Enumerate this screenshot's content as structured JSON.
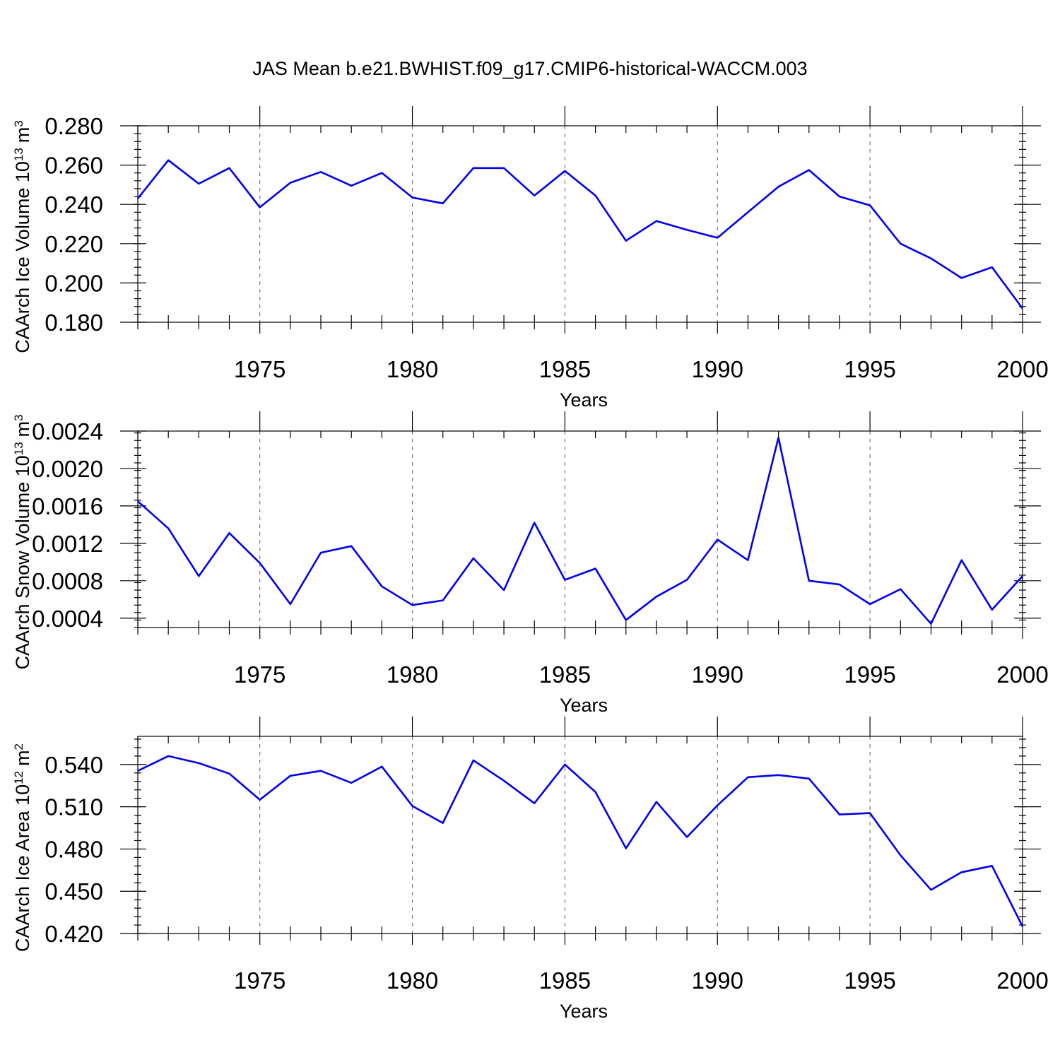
{
  "figure_title": "JAS Mean b.e21.BWHIST.f09_g17.CMIP6-historical-WACCM.003",
  "series_color": "#0000ee",
  "chart_data": [
    {
      "type": "line",
      "xlabel": "Years",
      "ylabel": "CAArch Ice Volume 10",
      "ylabel_exp": "13",
      "ylabel_unit": "m",
      "ylabel_unit_exp": "3",
      "xlim": [
        1971,
        2000
      ],
      "ylim": [
        0.18,
        0.28
      ],
      "x_ticks": [
        1975,
        1980,
        1985,
        1990,
        1995,
        2000
      ],
      "x_tick_labels": [
        "1975",
        "1980",
        "1985",
        "1990",
        "1995",
        "2000"
      ],
      "y_ticks": [
        0.18,
        0.2,
        0.22,
        0.24,
        0.26,
        0.28
      ],
      "y_tick_labels": [
        "0.180",
        "0.200",
        "0.220",
        "0.240",
        "0.260",
        "0.280"
      ],
      "y_minor_step": 0.004,
      "grid": "vertical dashed at major x ticks",
      "x": [
        1971,
        1972,
        1973,
        1974,
        1975,
        1976,
        1977,
        1978,
        1979,
        1980,
        1981,
        1982,
        1983,
        1984,
        1985,
        1986,
        1987,
        1988,
        1989,
        1990,
        1991,
        1992,
        1993,
        1994,
        1995,
        1996,
        1997,
        1998,
        1999,
        2000
      ],
      "values": [
        0.243,
        0.2625,
        0.2505,
        0.2585,
        0.2385,
        0.251,
        0.2565,
        0.2495,
        0.256,
        0.2435,
        0.2405,
        0.2585,
        0.2585,
        0.2445,
        0.257,
        0.2445,
        0.2215,
        0.2315,
        0.227,
        0.223,
        0.236,
        0.249,
        0.2575,
        0.244,
        0.2395,
        0.22,
        0.2125,
        0.2025,
        0.208,
        0.187
      ]
    },
    {
      "type": "line",
      "xlabel": "Years",
      "ylabel": "CAArch Snow Volume 10",
      "ylabel_exp": "13",
      "ylabel_unit": "m",
      "ylabel_unit_exp": "3",
      "xlim": [
        1971,
        2000
      ],
      "ylim": [
        0.0003,
        0.0024
      ],
      "x_ticks": [
        1975,
        1980,
        1985,
        1990,
        1995,
        2000
      ],
      "x_tick_labels": [
        "1975",
        "1980",
        "1985",
        "1990",
        "1995",
        "2000"
      ],
      "y_ticks": [
        0.0004,
        0.0008,
        0.0012,
        0.0016,
        0.002,
        0.0024
      ],
      "y_tick_labels": [
        "0.0004",
        "0.0008",
        "0.0012",
        "0.0016",
        "0.0020",
        "0.0024"
      ],
      "y_minor_step": 8e-05,
      "grid": "vertical dashed at major x ticks",
      "x": [
        1971,
        1972,
        1973,
        1974,
        1975,
        1976,
        1977,
        1978,
        1979,
        1980,
        1981,
        1982,
        1983,
        1984,
        1985,
        1986,
        1987,
        1988,
        1989,
        1990,
        1991,
        1992,
        1993,
        1994,
        1995,
        1996,
        1997,
        1998,
        1999,
        2000
      ],
      "values": [
        0.00165,
        0.00136,
        0.00085,
        0.00131,
        0.00099,
        0.00055,
        0.0011,
        0.00117,
        0.00074,
        0.00054,
        0.00059,
        0.00104,
        0.0007,
        0.00142,
        0.00081,
        0.00093,
        0.00038,
        0.00063,
        0.00081,
        0.00124,
        0.00102,
        0.00233,
        0.0008,
        0.00076,
        0.00055,
        0.00071,
        0.00034,
        0.00102,
        0.00049,
        0.00085
      ]
    },
    {
      "type": "line",
      "xlabel": "Years",
      "ylabel": "CAArch Ice Area 10",
      "ylabel_exp": "12",
      "ylabel_unit": "m",
      "ylabel_unit_exp": "2",
      "xlim": [
        1971,
        2000
      ],
      "ylim": [
        0.42,
        0.56
      ],
      "x_ticks": [
        1975,
        1980,
        1985,
        1990,
        1995,
        2000
      ],
      "x_tick_labels": [
        "1975",
        "1980",
        "1985",
        "1990",
        "1995",
        "2000"
      ],
      "y_ticks": [
        0.42,
        0.45,
        0.48,
        0.51,
        0.54
      ],
      "y_tick_labels": [
        "0.420",
        "0.450",
        "0.480",
        "0.510",
        "0.540"
      ],
      "y_minor_step": 0.006,
      "grid": "vertical dashed at major x ticks",
      "x": [
        1971,
        1972,
        1973,
        1974,
        1975,
        1976,
        1977,
        1978,
        1979,
        1980,
        1981,
        1982,
        1983,
        1984,
        1985,
        1986,
        1987,
        1988,
        1989,
        1990,
        1991,
        1992,
        1993,
        1994,
        1995,
        1996,
        1997,
        1998,
        1999,
        2000
      ],
      "values": [
        0.5355,
        0.546,
        0.541,
        0.5335,
        0.515,
        0.532,
        0.5355,
        0.527,
        0.5385,
        0.5105,
        0.4985,
        0.543,
        0.5285,
        0.5125,
        0.54,
        0.5205,
        0.4805,
        0.5135,
        0.4885,
        0.511,
        0.531,
        0.5325,
        0.53,
        0.5045,
        0.5055,
        0.4755,
        0.451,
        0.4635,
        0.468,
        0.425
      ]
    }
  ]
}
